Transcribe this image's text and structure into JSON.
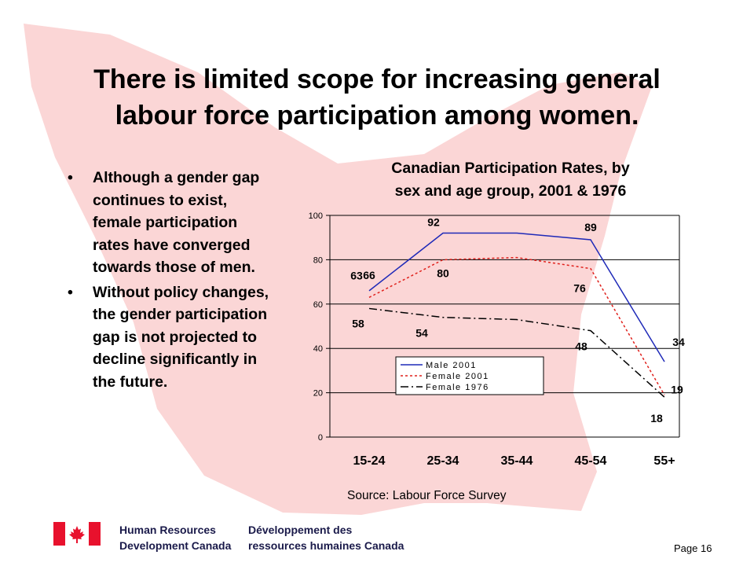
{
  "slide": {
    "title_lines": [
      "There is limited scope for increasing general",
      "labour force participation among women."
    ],
    "bullets": [
      "Although a gender gap continues to exist, female participation rates have converged towards those of men.",
      "Without policy changes, the gender participation gap is not projected to decline significantly in the future."
    ],
    "bullet_symbol": "•",
    "source": "Source: Labour Force Survey",
    "page": "Page 16"
  },
  "footer": {
    "dept_en": [
      "Human Resources",
      "Development Canada"
    ],
    "dept_fr": [
      "Développement des",
      "ressources humaines Canada"
    ],
    "flag_red": "#e8112d"
  },
  "colors": {
    "background_leaf": "#fbd6d6",
    "male_2001": "#1f2ab8",
    "female_2001": "#e0201b",
    "female_1976": "#000000"
  },
  "chart_data": {
    "type": "line",
    "title_lines": [
      "Canadian Participation Rates, by",
      "sex and age group, 2001 & 1976"
    ],
    "categories": [
      "15-24",
      "25-34",
      "35-44",
      "45-54",
      "55+"
    ],
    "ylim": [
      0,
      100
    ],
    "yticks": [
      0,
      20,
      40,
      60,
      80,
      100
    ],
    "grid": true,
    "legend_position": "bottom-center",
    "series": [
      {
        "name": "Male 2001",
        "values": [
          66,
          92,
          92,
          89,
          34
        ],
        "color": "#1f2ab8",
        "dash": "solid"
      },
      {
        "name": "Female 2001",
        "values": [
          63,
          80,
          81,
          76,
          19
        ],
        "color": "#e0201b",
        "dash": "dotted"
      },
      {
        "name": "Female 1976",
        "values": [
          58,
          54,
          53,
          48,
          18
        ],
        "color": "#000000",
        "dash": "dashdot"
      }
    ],
    "data_labels": [
      {
        "series": 0,
        "index": 0,
        "text": "66"
      },
      {
        "series": 0,
        "index": 1,
        "text": "92"
      },
      {
        "series": 0,
        "index": 3,
        "text": "89"
      },
      {
        "series": 0,
        "index": 4,
        "text": "34"
      },
      {
        "series": 1,
        "index": 0,
        "text": "63"
      },
      {
        "series": 1,
        "index": 1,
        "text": "80"
      },
      {
        "series": 1,
        "index": 3,
        "text": "76"
      },
      {
        "series": 1,
        "index": 4,
        "text": "19"
      },
      {
        "series": 2,
        "index": 0,
        "text": "58"
      },
      {
        "series": 2,
        "index": 1,
        "text": "54"
      },
      {
        "series": 2,
        "index": 3,
        "text": "48"
      },
      {
        "series": 2,
        "index": 4,
        "text": "18"
      }
    ]
  }
}
